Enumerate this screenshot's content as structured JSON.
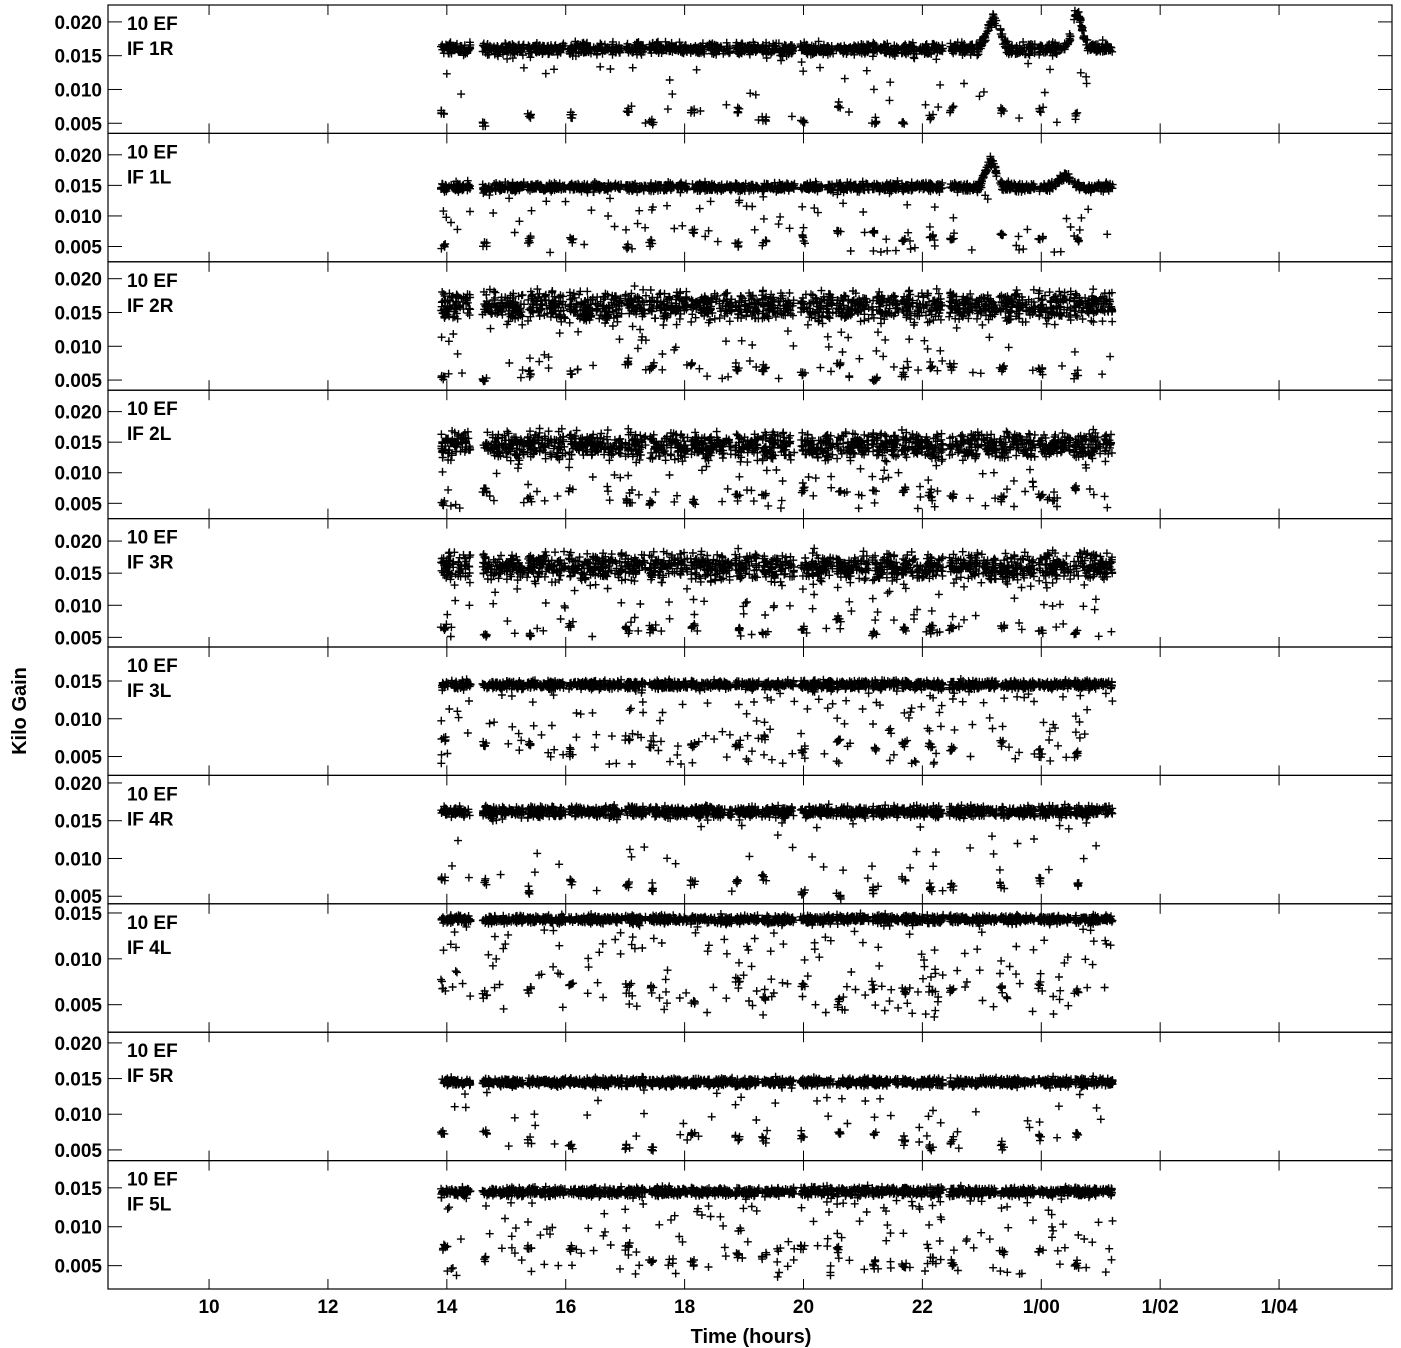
{
  "chart_data": {
    "type": "scatter",
    "marker": "plus",
    "color": "#000000",
    "xlabel": "Time (hours)",
    "ylabel": "Kilo Gain",
    "xlim": [
      8.3,
      29.9
    ],
    "x_ticks": [
      {
        "value": 10,
        "label": "10"
      },
      {
        "value": 12,
        "label": "12"
      },
      {
        "value": 14,
        "label": "14"
      },
      {
        "value": 16,
        "label": "16"
      },
      {
        "value": 18,
        "label": "18"
      },
      {
        "value": 20,
        "label": "20"
      },
      {
        "value": 22,
        "label": "22"
      },
      {
        "value": 24,
        "label": "1/00"
      },
      {
        "value": 26,
        "label": "1/02"
      },
      {
        "value": 28,
        "label": "1/04"
      }
    ],
    "data_time_range": [
      13.9,
      25.2
    ],
    "scans": [
      [
        13.9,
        14.4
      ],
      [
        14.6,
        15.3
      ],
      [
        15.35,
        16.0
      ],
      [
        16.05,
        16.95
      ],
      [
        17.0,
        17.35
      ],
      [
        17.4,
        18.05
      ],
      [
        18.1,
        18.8
      ],
      [
        18.85,
        19.25
      ],
      [
        19.3,
        19.85
      ],
      [
        19.95,
        20.5
      ],
      [
        20.55,
        21.1
      ],
      [
        21.15,
        21.6
      ],
      [
        21.65,
        22.1
      ],
      [
        22.1,
        22.35
      ],
      [
        22.45,
        23.25
      ],
      [
        23.3,
        23.9
      ],
      [
        23.95,
        24.5
      ],
      [
        24.55,
        25.2
      ]
    ],
    "panels": [
      {
        "antenna": "10 EF",
        "if": "IF 1R",
        "ylim": [
          0.0035,
          0.0225
        ],
        "yticks": [
          "0.005",
          "0.010",
          "0.015",
          "0.020"
        ],
        "baseline": 0.016,
        "spread": 0.0006,
        "noise": 0.25,
        "excursions": [
          {
            "t": 23.2,
            "peak": 0.0205,
            "width": 0.15
          },
          {
            "t": 24.6,
            "peak": 0.021,
            "width": 0.12
          }
        ]
      },
      {
        "antenna": "10 EF",
        "if": "IF 1L",
        "ylim": [
          0.0025,
          0.0235
        ],
        "yticks": [
          "0.005",
          "0.010",
          "0.015",
          "0.020"
        ],
        "baseline": 0.0147,
        "spread": 0.0005,
        "noise": 0.4,
        "excursions": [
          {
            "t": 23.15,
            "peak": 0.019,
            "width": 0.12
          },
          {
            "t": 24.4,
            "peak": 0.0165,
            "width": 0.15
          }
        ]
      },
      {
        "antenna": "10 EF",
        "if": "IF 2R",
        "ylim": [
          0.0035,
          0.0225
        ],
        "yticks": [
          "0.005",
          "0.010",
          "0.015",
          "0.020"
        ],
        "baseline": 0.016,
        "spread": 0.0015,
        "noise": 0.6,
        "excursions": []
      },
      {
        "antenna": "10 EF",
        "if": "IF 2L",
        "ylim": [
          0.0025,
          0.0235
        ],
        "yticks": [
          "0.005",
          "0.010",
          "0.015",
          "0.020"
        ],
        "baseline": 0.0145,
        "spread": 0.0015,
        "noise": 0.7,
        "excursions": []
      },
      {
        "antenna": "10 EF",
        "if": "IF 3R",
        "ylim": [
          0.0035,
          0.0235
        ],
        "yticks": [
          "0.005",
          "0.010",
          "0.015",
          "0.020"
        ],
        "baseline": 0.016,
        "spread": 0.0015,
        "noise": 0.6,
        "excursions": []
      },
      {
        "antenna": "10 EF",
        "if": "IF 3L",
        "ylim": [
          0.0025,
          0.0195
        ],
        "yticks": [
          "0.005",
          "0.010",
          "0.015"
        ],
        "baseline": 0.0145,
        "spread": 0.0004,
        "noise": 0.8,
        "excursions": []
      },
      {
        "antenna": "10 EF",
        "if": "IF 4R",
        "ylim": [
          0.004,
          0.021
        ],
        "yticks": [
          "0.005",
          "0.010",
          "0.015",
          "0.020"
        ],
        "baseline": 0.0162,
        "spread": 0.0005,
        "noise": 0.25,
        "excursions": []
      },
      {
        "antenna": "10 EF",
        "if": "IF 4L",
        "ylim": [
          0.002,
          0.016
        ],
        "yticks": [
          "0.005",
          "0.010",
          "0.015"
        ],
        "baseline": 0.0143,
        "spread": 0.0003,
        "noise": 0.8,
        "excursions": []
      },
      {
        "antenna": "10 EF",
        "if": "IF 5R",
        "ylim": [
          0.0035,
          0.0215
        ],
        "yticks": [
          "0.005",
          "0.010",
          "0.015",
          "0.020"
        ],
        "baseline": 0.0145,
        "spread": 0.0004,
        "noise": 0.25,
        "excursions": []
      },
      {
        "antenna": "10 EF",
        "if": "IF 5L",
        "ylim": [
          0.002,
          0.0185
        ],
        "yticks": [
          "0.005",
          "0.010",
          "0.015"
        ],
        "baseline": 0.0145,
        "spread": 0.0004,
        "noise": 0.8,
        "excursions": []
      }
    ]
  }
}
